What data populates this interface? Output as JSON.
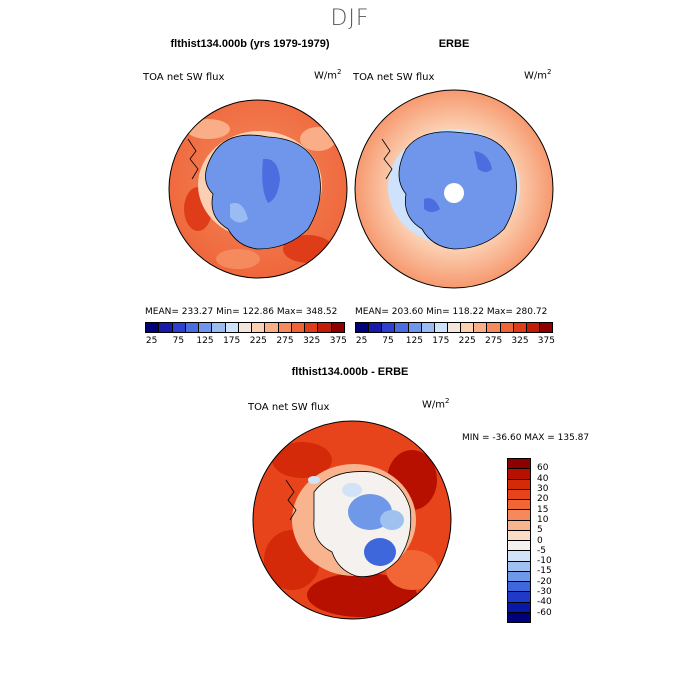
{
  "figure": {
    "season": "DJF",
    "top_left_title": "flthist134.000b (yrs 1979-1979)",
    "top_right_title": "ERBE",
    "bottom_title": "flthist134.000b - ERBE"
  },
  "chart_data": [
    {
      "type": "heatmap",
      "title": "flthist134.000b (yrs 1979-1979)",
      "variable": "TOA net SW flux",
      "units": "W/m²",
      "units_base": "W/m",
      "units_exp": "2",
      "stats": "MEAN= 233.27  Min= 122.86  Max= 348.52",
      "mean": 233.27,
      "min": 122.86,
      "max": 348.52,
      "levels": [
        "25",
        "75",
        "125",
        "175",
        "225",
        "275",
        "325",
        "375"
      ],
      "colors": [
        "#00007a",
        "#1a1aa8",
        "#2f3fd0",
        "#4a6de0",
        "#6f96ea",
        "#9bbcf3",
        "#cfe2fb",
        "#f4e6dc",
        "#fbd0b2",
        "#f9ae87",
        "#f58a5e",
        "#ee6338",
        "#df3d1a",
        "#c21d08",
        "#8c0000"
      ]
    },
    {
      "type": "heatmap",
      "title": "ERBE",
      "variable": "TOA net SW flux",
      "units": "W/m²",
      "units_base": "W/m",
      "units_exp": "2",
      "stats": "MEAN= 203.60  Min= 118.22  Max= 280.72",
      "mean": 203.6,
      "min": 118.22,
      "max": 280.72,
      "levels": [
        "25",
        "75",
        "125",
        "175",
        "225",
        "275",
        "325",
        "375"
      ],
      "colors": [
        "#00007a",
        "#1a1aa8",
        "#2f3fd0",
        "#4a6de0",
        "#6f96ea",
        "#9bbcf3",
        "#cfe2fb",
        "#f4e6dc",
        "#fbd0b2",
        "#f9ae87",
        "#f58a5e",
        "#ee6338",
        "#df3d1a",
        "#c21d08",
        "#8c0000"
      ]
    },
    {
      "type": "heatmap",
      "title": "flthist134.000b - ERBE",
      "variable": "TOA net SW flux",
      "units": "W/m²",
      "units_base": "W/m",
      "units_exp": "2",
      "stats": "MIN = -36.60  MAX = 135.87",
      "min": -36.6,
      "max": 135.87,
      "levels": [
        "60",
        "40",
        "30",
        "20",
        "15",
        "10",
        "5",
        "0",
        "-5",
        "-10",
        "-15",
        "-20",
        "-30",
        "-40",
        "-60"
      ],
      "colors": [
        "#8c0000",
        "#b81000",
        "#d42a0a",
        "#e8441c",
        "#f26535",
        "#f5895c",
        "#f8b48f",
        "#fcdcc6",
        "#f5f1ee",
        "#d2e2f7",
        "#9fc1f0",
        "#6f98e8",
        "#3f67dc",
        "#1f3ac8",
        "#0a18a6",
        "#00007a"
      ]
    }
  ]
}
